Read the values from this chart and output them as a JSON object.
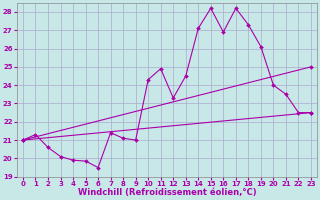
{
  "xlabel": "Windchill (Refroidissement éolien,°C)",
  "xlim": [
    -0.5,
    23.5
  ],
  "ylim": [
    19,
    28.5
  ],
  "xticks": [
    0,
    1,
    2,
    3,
    4,
    5,
    6,
    7,
    8,
    9,
    10,
    11,
    12,
    13,
    14,
    15,
    16,
    17,
    18,
    19,
    20,
    21,
    22,
    23
  ],
  "yticks": [
    19,
    20,
    21,
    22,
    23,
    24,
    25,
    26,
    27,
    28
  ],
  "bg_color": "#c8e8e8",
  "grid_color": "#aaaacc",
  "line_color": "#aa00aa",
  "line1_x": [
    0,
    1,
    2,
    3,
    4,
    5,
    6,
    7,
    8,
    9,
    10,
    11,
    12,
    13,
    14,
    15,
    16,
    17,
    18,
    19,
    20,
    21,
    22,
    23
  ],
  "line1_y": [
    21.0,
    21.3,
    20.6,
    20.1,
    19.9,
    19.85,
    19.5,
    21.4,
    21.1,
    21.0,
    24.3,
    24.9,
    23.3,
    24.5,
    27.1,
    28.2,
    26.9,
    28.2,
    27.3,
    26.1,
    24.0,
    23.5,
    22.5,
    22.5
  ],
  "line2_x": [
    0,
    23
  ],
  "line2_y": [
    21.0,
    25.0
  ],
  "line3_x": [
    0,
    23
  ],
  "line3_y": [
    21.0,
    22.5
  ],
  "marker": "D",
  "markersize": 2.0,
  "linewidth": 0.8,
  "tick_fontsize": 5.0,
  "label_fontsize": 6.0
}
